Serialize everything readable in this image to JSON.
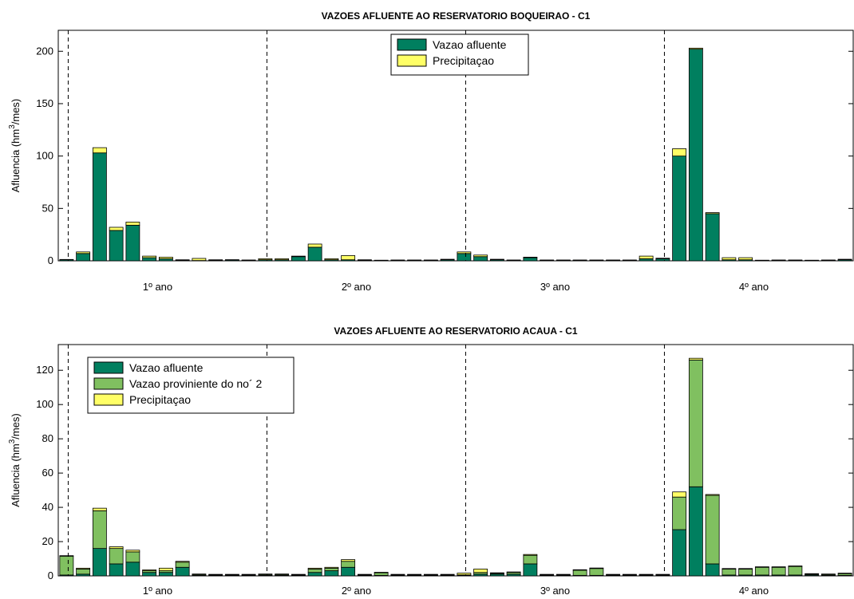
{
  "chart_data": [
    {
      "type": "bar",
      "stacked": true,
      "title": "VAZOES AFLUENTE AO RESERVATORIO BOQUEIRAO - C1",
      "ylabel": "Afluencia (hm3/mes)",
      "ylabel_parts": {
        "pre": "Afluencia (hm",
        "sup": "3",
        "post": "/mes)"
      },
      "ylim": [
        0,
        220
      ],
      "yticks": [
        0,
        50,
        100,
        150,
        200
      ],
      "year_labels": [
        "1º ano",
        "2º ano",
        "3º ano",
        "4º ano"
      ],
      "legend_position": "top-center",
      "series": [
        {
          "name": "Vazao afluente",
          "color": "#007f5f",
          "values": [
            1,
            7,
            103,
            29,
            34,
            3,
            2,
            0.5,
            0.3,
            0.5,
            0.8,
            0.5,
            1,
            1,
            4,
            13,
            1,
            1,
            0.5,
            0.3,
            0.5,
            0.5,
            0.5,
            1,
            7,
            4,
            1,
            0.5,
            3,
            0.5,
            0.5,
            0.5,
            0.5,
            0.5,
            0.5,
            2,
            2,
            100,
            202,
            45,
            1,
            1,
            0.3,
            0.5,
            0.5,
            0.3,
            0.5,
            1
          ]
        },
        {
          "name": "Precipitaçao",
          "color": "#ffff66",
          "values": [
            0.3,
            1.5,
            5,
            3,
            3,
            1.5,
            1.5,
            0.5,
            2,
            0.5,
            0.3,
            0.3,
            1,
            1,
            0.5,
            3,
            1,
            4,
            0.5,
            0.3,
            0.3,
            0.3,
            0.3,
            0.5,
            1.5,
            1.5,
            0.5,
            0.3,
            0.5,
            0.3,
            0.3,
            0.3,
            0.3,
            0.3,
            0.3,
            2.5,
            0.5,
            7,
            1,
            1,
            2,
            2,
            0.3,
            0.3,
            0.3,
            0.3,
            0.3,
            0.5
          ]
        }
      ]
    },
    {
      "type": "bar",
      "stacked": true,
      "title": "VAZOES AFLUENTE AO RESERVATORIO ACAUA - C1",
      "ylabel": "Afluencia (hm3/mes)",
      "ylabel_parts": {
        "pre": "Afluencia (hm",
        "sup": "3",
        "post": "/mes)"
      },
      "ylim": [
        0,
        135
      ],
      "yticks": [
        0,
        20,
        40,
        60,
        80,
        100,
        120
      ],
      "year_labels": [
        "1º ano",
        "2º ano",
        "3º ano",
        "4º ano"
      ],
      "legend_position": "top-left",
      "series": [
        {
          "name": "Vazao afluente",
          "color": "#007f5f",
          "values": [
            0.5,
            1,
            16,
            7,
            8,
            2,
            2,
            5,
            0.3,
            0.3,
            0.3,
            0.3,
            0.3,
            0.3,
            0.3,
            2,
            3,
            5,
            0.3,
            0.3,
            0.3,
            0.3,
            0.3,
            0.3,
            0.3,
            1,
            1,
            1,
            7,
            0.3,
            0.3,
            0.3,
            0.3,
            0.3,
            0.3,
            0.3,
            0.3,
            27,
            52,
            7,
            0.5,
            0.5,
            0.5,
            0.5,
            0.5,
            0.5,
            0.3,
            0.3
          ]
        },
        {
          "name": "Vazao proviniente do no´ 2",
          "color": "#80c060",
          "values": [
            11,
            3,
            22,
            9,
            6,
            1,
            1,
            3,
            0.5,
            0.3,
            0.3,
            0.3,
            0.5,
            0.5,
            0.3,
            2,
            1.5,
            3.5,
            0.3,
            1.5,
            0.3,
            0.3,
            0.3,
            0.3,
            0.3,
            1,
            0.5,
            1,
            5,
            0.3,
            0.3,
            3,
            4,
            0.3,
            0.3,
            0.3,
            0.3,
            19,
            74,
            40,
            3.5,
            3.5,
            4.5,
            4.5,
            5,
            0.5,
            0.5,
            1
          ]
        },
        {
          "name": "Precipitaçao",
          "color": "#ffff66",
          "values": [
            0.3,
            0.5,
            1.5,
            1,
            1,
            0.5,
            1.5,
            0.5,
            0.3,
            0.3,
            0.3,
            0.3,
            0.3,
            0.3,
            0.3,
            0.5,
            0.5,
            1,
            0.3,
            0.3,
            0.3,
            0.3,
            0.3,
            0.3,
            1,
            2,
            0.3,
            0.3,
            0.5,
            0.3,
            0.3,
            0.3,
            0.3,
            0.3,
            0.3,
            0.3,
            0.3,
            3,
            1,
            0.5,
            0.3,
            0.3,
            0.3,
            0.3,
            0.3,
            0.3,
            0.3,
            0.3
          ]
        }
      ]
    }
  ]
}
